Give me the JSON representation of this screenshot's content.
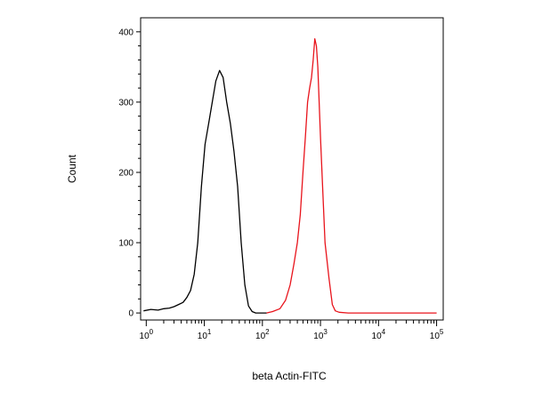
{
  "chart_data": {
    "type": "line",
    "xlabel": "beta Actin-FITC",
    "ylabel": "Count",
    "x_scale": "log",
    "xlim": [
      0.8,
      130000
    ],
    "ylim": [
      -10,
      420
    ],
    "grid": false,
    "legend": "none",
    "y_ticks": [
      {
        "value": 0,
        "label": "0"
      },
      {
        "value": 100,
        "label": "100"
      },
      {
        "value": 200,
        "label": "200"
      },
      {
        "value": 300,
        "label": "300"
      },
      {
        "value": 400,
        "label": "400"
      }
    ],
    "x_ticks": [
      {
        "value": 1,
        "base": "10",
        "exp": "0"
      },
      {
        "value": 10,
        "base": "10",
        "exp": "1"
      },
      {
        "value": 100,
        "base": "10",
        "exp": "2"
      },
      {
        "value": 1000,
        "base": "10",
        "exp": "3"
      },
      {
        "value": 10000,
        "base": "10",
        "exp": "4"
      },
      {
        "value": 100000,
        "base": "10",
        "exp": "5"
      }
    ],
    "series": [
      {
        "color": "#000000",
        "x": [
          0.9,
          1.2,
          1.6,
          2.0,
          2.5,
          3.0,
          3.6,
          4.3,
          5.0,
          5.8,
          6.7,
          7.7,
          8.9,
          10.3,
          11.9,
          13.7,
          15.8,
          18.3,
          21.1,
          24.3,
          28.1,
          32.4,
          37.4,
          43.2,
          49.9,
          57.6,
          66.5,
          76.8,
          88.7,
          102,
          118
        ],
        "y": [
          3,
          5,
          4,
          6,
          7,
          9,
          12,
          15,
          22,
          32,
          55,
          100,
          180,
          240,
          270,
          300,
          330,
          345,
          335,
          300,
          270,
          230,
          180,
          100,
          40,
          10,
          2,
          0,
          0,
          0,
          0
        ]
      },
      {
        "color": "#e8141c",
        "x": [
          118,
          150,
          200,
          250,
          300,
          350,
          400,
          450,
          500,
          550,
          600,
          650,
          700,
          750,
          800,
          850,
          900,
          950,
          1000,
          1100,
          1200,
          1400,
          1600,
          1800,
          2100,
          3000,
          10000,
          100000
        ],
        "y": [
          0,
          2,
          6,
          18,
          40,
          70,
          100,
          140,
          200,
          250,
          300,
          320,
          335,
          360,
          390,
          380,
          350,
          300,
          250,
          170,
          100,
          50,
          12,
          3,
          1,
          0,
          0,
          0
        ]
      }
    ]
  }
}
